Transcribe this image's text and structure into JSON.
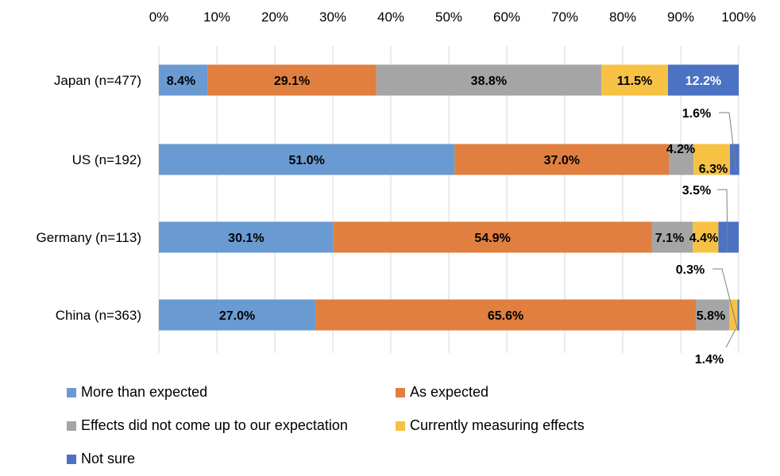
{
  "chart_data": {
    "type": "bar",
    "orientation": "horizontal",
    "stacked": "percent",
    "categories": [
      "Japan (n=477)",
      "US (n=192)",
      "Germany (n=113)",
      "China (n=363)"
    ],
    "x_ticks": [
      "0%",
      "10%",
      "20%",
      "30%",
      "40%",
      "50%",
      "60%",
      "70%",
      "80%",
      "90%",
      "100%"
    ],
    "xlim": [
      0,
      100
    ],
    "axis_position": "top",
    "grid": true,
    "legend_position": "bottom",
    "series": [
      {
        "name": "More than expected",
        "color": "#6a9ad2",
        "values": [
          8.4,
          51.0,
          30.1,
          27.0
        ],
        "labels": [
          "8.4%",
          "51.0%",
          "30.1%",
          "27.0%"
        ]
      },
      {
        "name": "As expected",
        "color": "#e07f3f",
        "values": [
          29.1,
          37.0,
          54.9,
          65.6
        ],
        "labels": [
          "29.1%",
          "37.0%",
          "54.9%",
          "65.6%"
        ]
      },
      {
        "name": "Effects did not come up to our expectation",
        "color": "#a5a5a5",
        "values": [
          38.8,
          4.2,
          7.1,
          5.8
        ],
        "labels": [
          "38.8%",
          "4.2%",
          "7.1%",
          "5.8%"
        ]
      },
      {
        "name": "Currently measuring effects",
        "color": "#f7c244",
        "values": [
          11.5,
          6.3,
          4.4,
          1.4
        ],
        "labels": [
          "11.5%",
          "6.3%",
          "4.4%",
          "1.4%"
        ]
      },
      {
        "name": "Not sure",
        "color": "#4c72c4",
        "values": [
          12.2,
          1.6,
          3.5,
          0.3
        ],
        "labels": [
          "12.2%",
          "1.6%",
          "3.5%",
          "0.3%"
        ]
      }
    ]
  }
}
